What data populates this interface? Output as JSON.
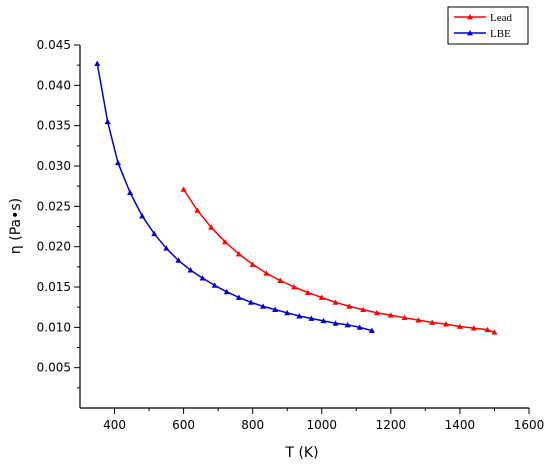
{
  "chart_data": {
    "type": "line",
    "title": "",
    "xlabel": "T (K)",
    "ylabel": "η (Pa•s)",
    "xlim": [
      300,
      1600
    ],
    "ylim": [
      0,
      0.045
    ],
    "x_ticks": [
      400,
      600,
      800,
      1000,
      1200,
      1400,
      1600
    ],
    "y_ticks": [
      0.005,
      0.01,
      0.015,
      0.02,
      0.025,
      0.03,
      0.035,
      0.04,
      0.045
    ],
    "x_tick_labels": [
      "400",
      "600",
      "800",
      "1000",
      "1200",
      "1400",
      "1600"
    ],
    "y_tick_labels": [
      "0.005",
      "0.010",
      "0.015",
      "0.020",
      "0.025",
      "0.030",
      "0.035",
      "0.040",
      "0.045"
    ],
    "legend_position": "top-right outside",
    "grid": false,
    "series": [
      {
        "name": "Lead",
        "color": "#ff0000",
        "marker": "triangle",
        "x": [
          600,
          640,
          680,
          720,
          760,
          800,
          840,
          880,
          920,
          960,
          1000,
          1040,
          1080,
          1120,
          1160,
          1200,
          1240,
          1280,
          1320,
          1360,
          1400,
          1440,
          1480,
          1500
        ],
        "y": [
          0.0271,
          0.0245,
          0.0224,
          0.0206,
          0.0191,
          0.0178,
          0.0167,
          0.0158,
          0.015,
          0.0143,
          0.0137,
          0.0131,
          0.0126,
          0.0122,
          0.0118,
          0.0115,
          0.0112,
          0.0109,
          0.0106,
          0.0104,
          0.0101,
          0.0099,
          0.0097,
          0.0094
        ]
      },
      {
        "name": "LBE",
        "color": "#0000cc",
        "marker": "triangle",
        "x": [
          350,
          380,
          410,
          445,
          480,
          515,
          550,
          585,
          620,
          655,
          690,
          725,
          760,
          795,
          830,
          865,
          900,
          935,
          970,
          1005,
          1040,
          1075,
          1110,
          1145
        ],
        "y": [
          0.0427,
          0.0355,
          0.0304,
          0.0267,
          0.0238,
          0.0216,
          0.0198,
          0.0183,
          0.0171,
          0.0161,
          0.0152,
          0.0144,
          0.0137,
          0.0131,
          0.0126,
          0.0122,
          0.0118,
          0.0114,
          0.0111,
          0.0108,
          0.0105,
          0.0103,
          0.01,
          0.0096
        ]
      }
    ]
  }
}
